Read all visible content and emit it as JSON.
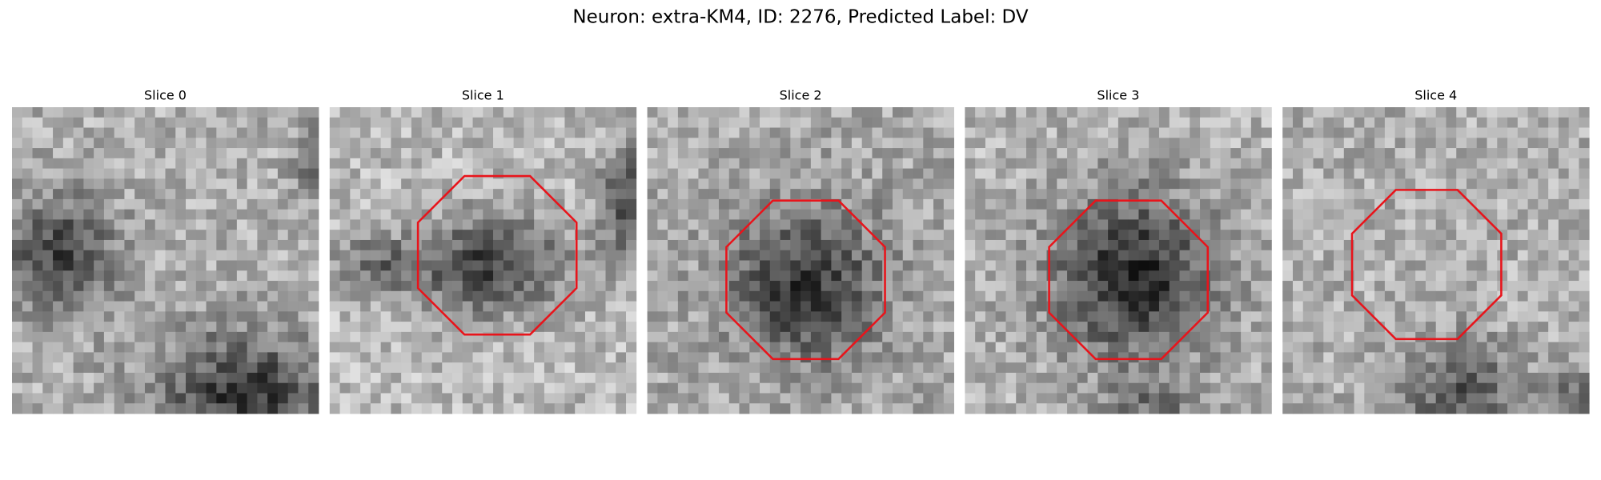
{
  "title": "Neuron: extra-KM4, ID: 2276, Predicted Label: DV",
  "panels": [
    {
      "title": "Slice 0"
    },
    {
      "title": "Slice 1"
    },
    {
      "title": "Slice 2"
    },
    {
      "title": "Slice 3"
    },
    {
      "title": "Slice 4"
    }
  ]
}
